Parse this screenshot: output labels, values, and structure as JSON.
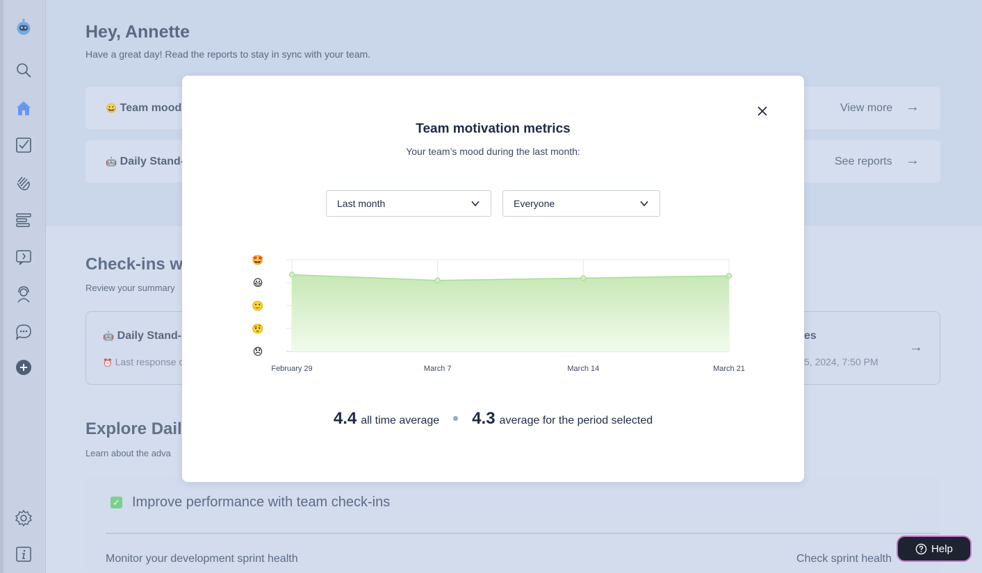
{
  "sidebar": {
    "icons": [
      "bot-logo-icon",
      "search-icon",
      "home-icon",
      "checkbox-icon",
      "clap-icon",
      "list-icon",
      "kudos-icon",
      "support-icon",
      "chat-icon",
      "add-icon",
      "settings-icon",
      "info-icon"
    ]
  },
  "header": {
    "greeting": "Hey,",
    "name": "Annette",
    "subtitle": "Have a great day! Read the reports to stay in sync with your team."
  },
  "cards": {
    "team_mood": {
      "emoji": "😀",
      "title": "Team mood",
      "link": "View more"
    },
    "daily_standup": {
      "emoji": "🤖",
      "title": "Daily Stand-",
      "link": "See reports"
    }
  },
  "checkins": {
    "heading": "Check-ins w",
    "sub": "Review your summary",
    "card_title_emoji": "🤖",
    "card_title": "Daily Stand-u",
    "last_response_emoji": "⏰",
    "last_response": "Last response c",
    "right_title": "es",
    "right_date": "5, 2024, 7:50 PM"
  },
  "explore": {
    "heading": "Explore Daily",
    "sub": "Learn about the adva"
  },
  "perf": {
    "title": "Improve performance with team check-ins",
    "sub": "Monitor your development sprint health",
    "link": "Check sprint health"
  },
  "modal": {
    "title": "Team motivation metrics",
    "subtitle": "Your team’s mood during the last month:",
    "period_select": "Last month",
    "people_select": "Everyone",
    "all_time_avg": "4.4",
    "all_time_label": "all time average",
    "period_avg": "4.3",
    "period_label": "average for the period selected"
  },
  "help": {
    "label": "Help"
  },
  "colors": {
    "accent": "#5b8def",
    "chart_fill": "#c9eab8",
    "chart_line": "#a8dc95",
    "help_border": "#c77ac9"
  },
  "chart_data": {
    "type": "area",
    "categories": [
      "February 29",
      "March 7",
      "March 14",
      "March 21"
    ],
    "series": [
      {
        "values": [
          4.35,
          4.1,
          4.2,
          4.3
        ]
      }
    ],
    "ylim": [
      1,
      5
    ],
    "y_tick_icons": [
      "🤩",
      "😃",
      "🙂",
      "🤨",
      "😞"
    ],
    "grid": true
  }
}
